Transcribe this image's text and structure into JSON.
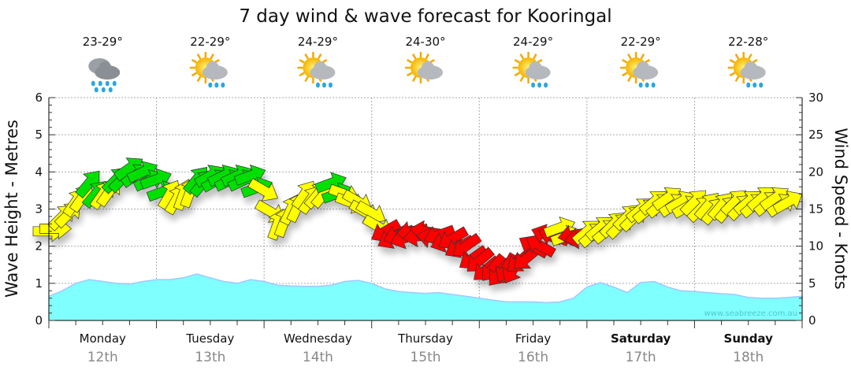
{
  "chart_data": {
    "type": "area",
    "title": "7 day wind & wave forecast for Kooringal",
    "ylabel_left": "Wave Height - Metres",
    "ylabel_right": "Wind Speed - Knots",
    "ylim_left": [
      0,
      6
    ],
    "ylim_right": [
      0,
      30
    ],
    "yticks_left": [
      "0",
      "1",
      "2",
      "3",
      "4",
      "5",
      "6"
    ],
    "yticks_right": [
      "0",
      "5",
      "10",
      "15",
      "20",
      "25",
      "30"
    ],
    "grid": true,
    "watermark": "www.seabreeze.com.au",
    "days": [
      {
        "day": "Monday",
        "date": "12th",
        "temp": "23-29°",
        "icon": "rain",
        "bold": false
      },
      {
        "day": "Tuesday",
        "date": "13th",
        "temp": "22-29°",
        "icon": "sun-shower",
        "bold": false
      },
      {
        "day": "Wednesday",
        "date": "14th",
        "temp": "24-29°",
        "icon": "sun-shower",
        "bold": false
      },
      {
        "day": "Thursday",
        "date": "15th",
        "temp": "24-30°",
        "icon": "partly-cloudy",
        "bold": false
      },
      {
        "day": "Friday",
        "date": "16th",
        "temp": "24-29°",
        "icon": "sun-shower",
        "bold": false
      },
      {
        "day": "Saturday",
        "date": "17th",
        "temp": "22-29°",
        "icon": "sun-shower",
        "bold": true
      },
      {
        "day": "Sunday",
        "date": "18th",
        "temp": "22-28°",
        "icon": "sun-shower",
        "bold": true
      }
    ],
    "wave_step_hours": 3,
    "wave_height_m": [
      0.65,
      0.8,
      1.0,
      1.1,
      1.05,
      1.0,
      0.98,
      1.05,
      1.1,
      1.1,
      1.15,
      1.25,
      1.15,
      1.05,
      1.0,
      1.1,
      1.05,
      0.95,
      0.93,
      0.92,
      0.92,
      0.95,
      1.05,
      1.08,
      1.0,
      0.85,
      0.78,
      0.75,
      0.73,
      0.75,
      0.7,
      0.65,
      0.6,
      0.55,
      0.5,
      0.5,
      0.5,
      0.48,
      0.5,
      0.6,
      0.9,
      1.02,
      0.9,
      0.75,
      1.02,
      1.05,
      0.9,
      0.8,
      0.78,
      0.75,
      0.72,
      0.7,
      0.62,
      0.6,
      0.6,
      0.62,
      0.65,
      0.62,
      0.58,
      0.57,
      0.55,
      0.55
    ],
    "wind_step_hours": 3,
    "wind": [
      {
        "kn": 12,
        "dir": 0,
        "c": "#ffff00"
      },
      {
        "kn": 14,
        "dir": -45,
        "c": "#ffff00"
      },
      {
        "kn": 16,
        "dir": -55,
        "c": "#ffff00"
      },
      {
        "kn": 18.5,
        "dir": -50,
        "c": "#00e000"
      },
      {
        "kn": 17,
        "dir": -55,
        "c": "#ffff00"
      },
      {
        "kn": 19,
        "dir": -45,
        "c": "#00e000"
      },
      {
        "kn": 20.5,
        "dir": -35,
        "c": "#00e000"
      },
      {
        "kn": 20,
        "dir": -25,
        "c": "#00e000"
      },
      {
        "kn": 19,
        "dir": -20,
        "c": "#00e000"
      },
      {
        "kn": 17,
        "dir": -60,
        "c": "#ffff00"
      },
      {
        "kn": 17,
        "dir": -70,
        "c": "#ffff00"
      },
      {
        "kn": 19,
        "dir": -50,
        "c": "#00e000"
      },
      {
        "kn": 19.5,
        "dir": -30,
        "c": "#00e000"
      },
      {
        "kn": 19.5,
        "dir": -25,
        "c": "#00e000"
      },
      {
        "kn": 19.5,
        "dir": -25,
        "c": "#00e000"
      },
      {
        "kn": 19.5,
        "dir": -20,
        "c": "#00e000"
      },
      {
        "kn": 17.5,
        "dir": 30,
        "c": "#ffff00"
      },
      {
        "kn": 13,
        "dir": -70,
        "c": "#ffff00"
      },
      {
        "kn": 15,
        "dir": -65,
        "c": "#ffff00"
      },
      {
        "kn": 17,
        "dir": -55,
        "c": "#ffff00"
      },
      {
        "kn": 17,
        "dir": -50,
        "c": "#ffff00"
      },
      {
        "kn": 18.5,
        "dir": -20,
        "c": "#00e000"
      },
      {
        "kn": 17,
        "dir": 20,
        "c": "#ffff00"
      },
      {
        "kn": 16,
        "dir": 30,
        "c": "#ffff00"
      },
      {
        "kn": 14.5,
        "dir": 30,
        "c": "#ffff00"
      },
      {
        "kn": 12,
        "dir": 150,
        "c": "#ff0000"
      },
      {
        "kn": 11.5,
        "dir": 160,
        "c": "#ff0000"
      },
      {
        "kn": 12,
        "dir": 170,
        "c": "#ff0000"
      },
      {
        "kn": 12,
        "dir": -170,
        "c": "#ff0000"
      },
      {
        "kn": 11.5,
        "dir": 160,
        "c": "#ff0000"
      },
      {
        "kn": 11,
        "dir": 150,
        "c": "#ff0000"
      },
      {
        "kn": 10,
        "dir": 145,
        "c": "#ff0000"
      },
      {
        "kn": 8,
        "dir": 140,
        "c": "#ff0000"
      },
      {
        "kn": 7,
        "dir": 130,
        "c": "#ff0000"
      },
      {
        "kn": 7,
        "dir": 120,
        "c": "#ff0000"
      },
      {
        "kn": 8,
        "dir": 140,
        "c": "#ff0000"
      },
      {
        "kn": 10,
        "dir": -150,
        "c": "#ff0000"
      },
      {
        "kn": 11.5,
        "dir": -160,
        "c": "#ff0000"
      },
      {
        "kn": 12.5,
        "dir": -20,
        "c": "#ffff00"
      },
      {
        "kn": 11.5,
        "dir": 170,
        "c": "#ff0000"
      },
      {
        "kn": 12,
        "dir": -40,
        "c": "#ffff00"
      },
      {
        "kn": 12.5,
        "dir": -40,
        "c": "#ffff00"
      },
      {
        "kn": 13,
        "dir": -45,
        "c": "#ffff00"
      },
      {
        "kn": 14,
        "dir": -45,
        "c": "#ffff00"
      },
      {
        "kn": 15,
        "dir": -40,
        "c": "#ffff00"
      },
      {
        "kn": 16,
        "dir": -40,
        "c": "#ffff00"
      },
      {
        "kn": 16.5,
        "dir": -35,
        "c": "#ffff00"
      },
      {
        "kn": 16,
        "dir": -30,
        "c": "#ffff00"
      },
      {
        "kn": 16,
        "dir": -45,
        "c": "#ffff00"
      },
      {
        "kn": 15.5,
        "dir": -50,
        "c": "#ffff00"
      },
      {
        "kn": 15.5,
        "dir": -50,
        "c": "#ffff00"
      },
      {
        "kn": 16,
        "dir": -45,
        "c": "#ffff00"
      },
      {
        "kn": 16,
        "dir": -40,
        "c": "#ffff00"
      },
      {
        "kn": 16.5,
        "dir": -40,
        "c": "#ffff00"
      },
      {
        "kn": 16.5,
        "dir": -35,
        "c": "#ffff00"
      },
      {
        "kn": 16,
        "dir": -30,
        "c": "#ffff00"
      }
    ]
  }
}
